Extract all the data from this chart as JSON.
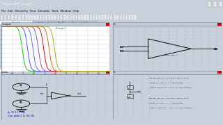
{
  "win_title": "LTspice XVII - [nobl]",
  "menu_items": "File  Edit  Hierarchy  View  Simulate  Tools  Window  Help",
  "win_bg": "#c8d0dc",
  "titlebar_bg": "#2c5f9e",
  "titlebar_text": "#ffffff",
  "menu_bg": "#dce4ec",
  "toolbar_bg": "#dce4ec",
  "panel_border": "#7a8a9a",
  "plot_bg": "#ffffff",
  "plot_grid": "#c0ccd8",
  "schematic_bg": "#d4dce8",
  "schematic_dot": "#9aaabb",
  "vtc_colors": [
    "#00cc00",
    "#4444ff",
    "#6666cc",
    "#8844aa",
    "#cc0000",
    "#cc6600",
    "#aaaa00"
  ],
  "vtc_thresholds": [
    0.95,
    1.2,
    1.45,
    1.7,
    1.95,
    2.2,
    2.45
  ],
  "vtc_steepness": 14,
  "vtc_vdd": 5.0,
  "tab_active_bg": "#ffffff",
  "tab_inactive_bg": "#b8c4d0",
  "tab_border": "#7a8a9a",
  "panel_header_bg": "#c0ccd8",
  "panel_header_text": "#000000",
  "close_btn": "#cc0000",
  "wire_color": "#000000",
  "text_blue": "#0000aa",
  "text_green": "#007700",
  "text_label": "#006600"
}
